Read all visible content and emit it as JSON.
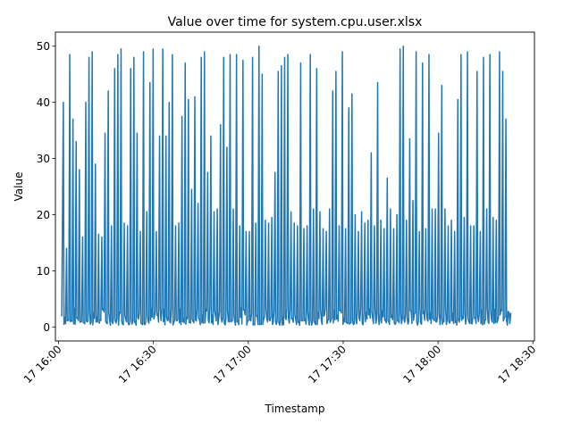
{
  "chart_data": {
    "type": "line",
    "title": "Value over time for system.cpu.user.xlsx",
    "xlabel": "Timestamp",
    "ylabel": "Value",
    "x_range": [
      "17 16:00",
      "17 18:30"
    ],
    "ylim": [
      -2.5,
      52.5
    ],
    "grid": false,
    "series_color": "#1f77b4",
    "x_ticks": [
      "17 16:00",
      "17 16:30",
      "17 17:00",
      "17 17:30",
      "17 18:00",
      "17 18:30"
    ],
    "y_ticks": [
      0,
      10,
      20,
      30,
      40,
      50
    ],
    "series": [
      {
        "x_start": "16:01",
        "x_end": "18:23",
        "sample_interval_minutes": 0.25,
        "baseline_low": 0.3,
        "baseline_high": 3.5,
        "peaks": [
          40,
          14,
          48.5,
          37,
          33,
          28,
          16,
          40,
          48,
          49,
          29,
          16.5,
          16,
          34.5,
          42,
          18,
          46,
          48.5,
          49.5,
          18.5,
          18,
          46,
          48,
          34.5,
          17,
          49,
          20.5,
          43.5,
          49.5,
          17,
          34,
          49.5,
          34,
          40,
          48.5,
          18,
          18.5,
          37.5,
          47,
          40.5,
          24.5,
          41,
          22,
          48,
          49,
          27.5,
          34,
          20.5,
          21,
          36,
          48,
          32,
          48.5,
          21,
          48.5,
          18,
          47.5,
          17,
          17,
          48,
          18.5,
          50,
          45,
          19,
          18.5,
          19.5,
          27.5,
          45.5,
          46.5,
          48,
          48.5,
          20.5,
          18.5,
          18,
          47,
          17.5,
          18,
          48.5,
          21,
          46,
          20.5,
          17.5,
          17,
          21,
          42,
          45.5,
          18,
          49,
          17.5,
          39,
          41.5,
          20,
          17,
          20.5,
          18.5,
          19,
          31,
          18,
          43.5,
          19,
          17.5,
          26.5,
          21,
          17.5,
          20,
          49.5,
          50,
          19,
          33.5,
          22.5,
          49,
          17,
          47,
          17.5,
          48.5,
          21,
          21,
          34.5,
          43,
          21,
          18,
          19,
          17,
          40.5,
          48.5,
          19.5,
          49,
          18,
          18,
          45.5,
          17,
          48,
          21,
          48.5,
          19.5,
          19,
          49,
          45.5,
          37,
          2.5
        ]
      }
    ]
  }
}
